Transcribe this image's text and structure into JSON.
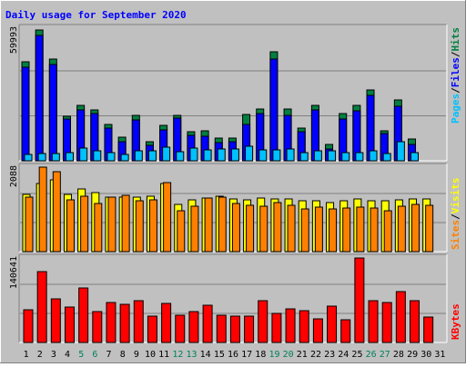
{
  "title": "Daily usage for September 2020",
  "colors": {
    "background": "#c0c0c0",
    "title": "#0000ff",
    "hits": "#008040",
    "files": "#0000ff",
    "pages": "#00c0ff",
    "visits": "#ffff00",
    "sites": "#ff8000",
    "kbytes": "#ff0000",
    "weekend_label": "#00805c",
    "weekday_label": "#000000"
  },
  "labels": {
    "hits": "Hits",
    "files": "Files",
    "pages": "Pages",
    "visits": "Visits",
    "sites": "Sites",
    "kbytes": "KBytes",
    "sep": "/"
  },
  "chart_data": [
    {
      "type": "bar",
      "panel": "hits-files-pages",
      "ymax_label": "59993",
      "ylim": [
        0,
        59993
      ],
      "x": [
        1,
        2,
        3,
        4,
        5,
        6,
        7,
        8,
        9,
        10,
        11,
        12,
        13,
        14,
        15,
        16,
        17,
        18,
        19,
        20,
        21,
        22,
        23,
        24,
        25,
        26,
        27,
        28,
        29,
        30,
        31
      ],
      "weekend_days": [
        5,
        6,
        12,
        13,
        19,
        20,
        26,
        27
      ],
      "series": [
        {
          "name": "Hits",
          "values": [
            45500,
            60000,
            46500,
            20500,
            25500,
            23300,
            16500,
            10900,
            20700,
            8900,
            16200,
            20800,
            13300,
            13900,
            10400,
            10400,
            21300,
            23800,
            50100,
            23600,
            14800,
            25300,
            7600,
            21800,
            25400,
            32700,
            13800,
            28000,
            10100,
            null,
            null
          ]
        },
        {
          "name": "Files",
          "values": [
            43000,
            57600,
            44000,
            19000,
            23200,
            21500,
            14900,
            8600,
            18800,
            7200,
            14000,
            19500,
            11600,
            11200,
            8300,
            8800,
            16800,
            21600,
            46500,
            21000,
            13500,
            23500,
            5300,
            19100,
            23000,
            29800,
            12500,
            24800,
            7600,
            null,
            null
          ]
        },
        {
          "name": "Pages",
          "values": [
            3000,
            3500,
            3500,
            3800,
            5700,
            4400,
            3800,
            2900,
            4500,
            4600,
            6200,
            4200,
            6000,
            5200,
            5300,
            5300,
            6800,
            5000,
            4900,
            5400,
            3900,
            4500,
            4500,
            3900,
            3800,
            4600,
            3400,
            8700,
            3900,
            null,
            null
          ]
        }
      ]
    },
    {
      "type": "bar",
      "panel": "visits-sites",
      "ymax_label": "2088",
      "ylim": [
        0,
        2088
      ],
      "x": [
        1,
        2,
        3,
        4,
        5,
        6,
        7,
        8,
        9,
        10,
        11,
        12,
        13,
        14,
        15,
        16,
        17,
        18,
        19,
        20,
        21,
        22,
        23,
        24,
        25,
        26,
        27,
        28,
        29,
        30,
        31
      ],
      "series": [
        {
          "name": "Visits",
          "values": [
            1380,
            1650,
            1730,
            1380,
            1510,
            1430,
            1320,
            1320,
            1320,
            1330,
            1650,
            1150,
            1260,
            1300,
            1340,
            1280,
            1260,
            1300,
            1280,
            1270,
            1220,
            1220,
            1180,
            1220,
            1280,
            1220,
            1220,
            1260,
            1280,
            1280,
            null
          ]
        },
        {
          "name": "Sites",
          "values": [
            1320,
            2040,
            1940,
            1250,
            1330,
            1170,
            1320,
            1370,
            1240,
            1260,
            1680,
            980,
            1100,
            1290,
            1320,
            1170,
            1130,
            1100,
            1180,
            1110,
            1030,
            1070,
            1030,
            1050,
            1070,
            1050,
            990,
            1090,
            1140,
            1110,
            null
          ]
        }
      ]
    },
    {
      "type": "bar",
      "panel": "kbytes",
      "ymax_label": "140641",
      "ylim": [
        0,
        140641
      ],
      "x": [
        1,
        2,
        3,
        4,
        5,
        6,
        7,
        8,
        9,
        10,
        11,
        12,
        13,
        14,
        15,
        16,
        17,
        18,
        19,
        20,
        21,
        22,
        23,
        24,
        25,
        26,
        27,
        28,
        29,
        30,
        31
      ],
      "series": [
        {
          "name": "KBytes",
          "values": [
            55000,
            118000,
            72000,
            59000,
            90000,
            52000,
            66000,
            64000,
            69000,
            44000,
            65000,
            45000,
            51000,
            62000,
            45000,
            44000,
            44000,
            69000,
            49000,
            56000,
            53000,
            40000,
            61000,
            38000,
            140641,
            70000,
            67000,
            84000,
            70000,
            42000,
            null
          ]
        }
      ]
    }
  ]
}
